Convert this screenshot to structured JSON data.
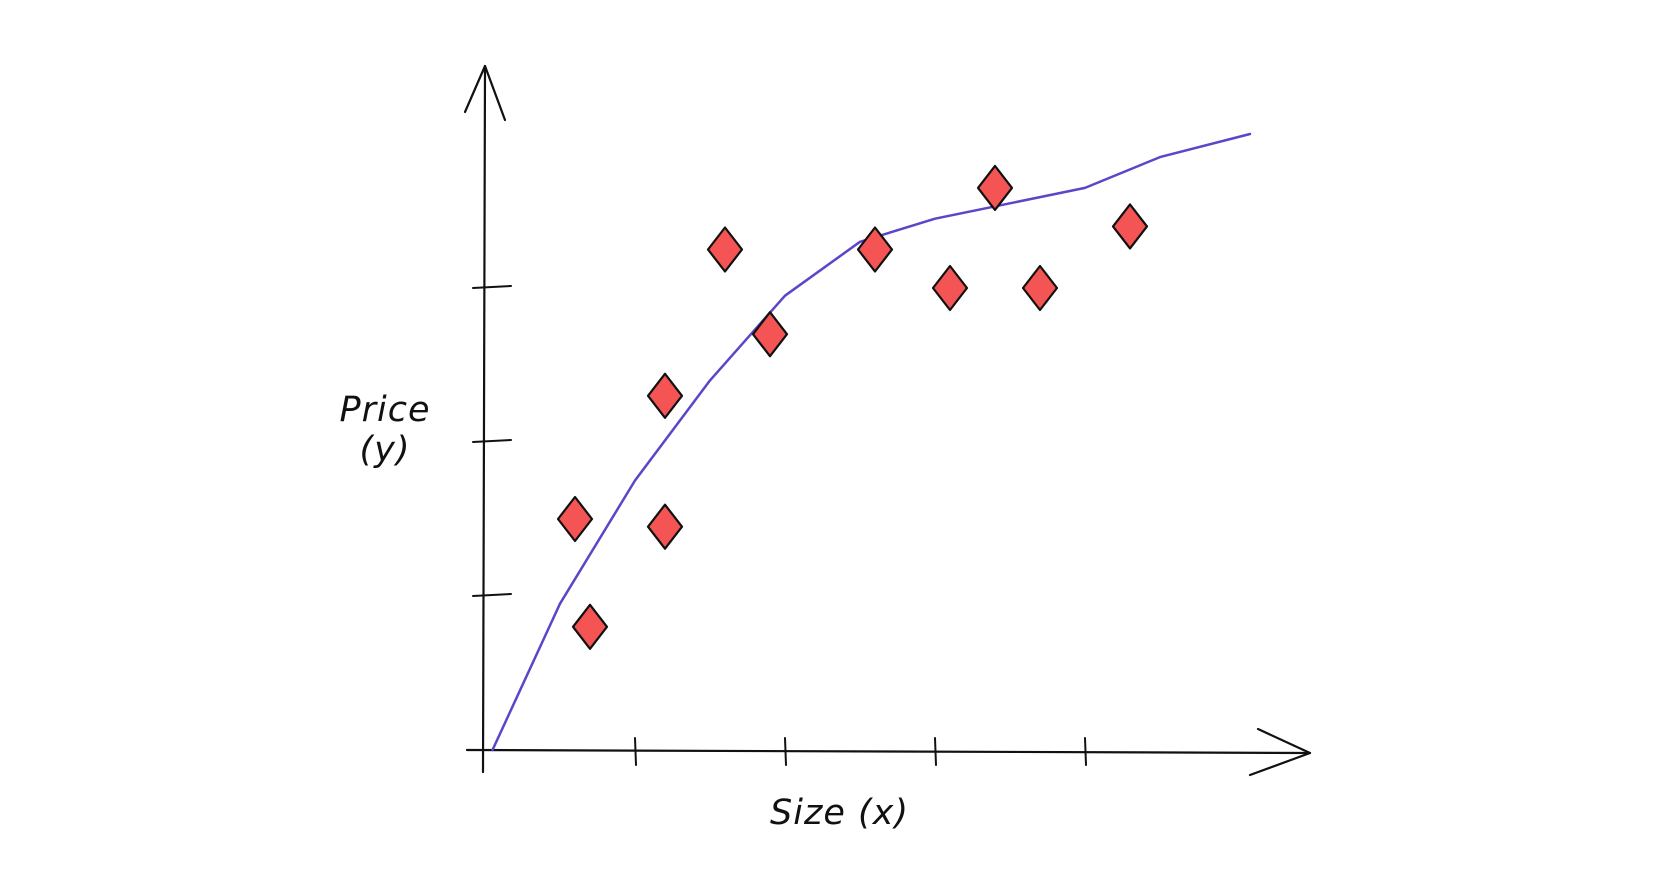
{
  "chart_data": {
    "type": "scatter",
    "title": "",
    "xlabel": "Size (x)",
    "ylabel_lines": [
      "Price",
      "(y)"
    ],
    "xlim": [
      0,
      5
    ],
    "ylim": [
      0,
      4.3
    ],
    "x_ticks": [
      1,
      2,
      3,
      4
    ],
    "y_ticks": [
      1,
      2,
      3
    ],
    "grid": false,
    "legend": "none",
    "series": [
      {
        "values": [
          {
            "x": 0.6,
            "y": 1.5
          },
          {
            "x": 0.7,
            "y": 0.8
          },
          {
            "x": 1.2,
            "y": 2.3
          },
          {
            "x": 1.2,
            "y": 1.45
          },
          {
            "x": 1.6,
            "y": 3.25
          },
          {
            "x": 1.9,
            "y": 2.7
          },
          {
            "x": 2.6,
            "y": 3.25
          },
          {
            "x": 3.1,
            "y": 3.0
          },
          {
            "x": 3.4,
            "y": 3.65
          },
          {
            "x": 3.7,
            "y": 3.0
          },
          {
            "x": 4.3,
            "y": 3.4
          }
        ]
      },
      {
        "values": [
          {
            "x": 0.05,
            "y": 0.0
          },
          {
            "x": 0.5,
            "y": 0.95
          },
          {
            "x": 1.0,
            "y": 1.75
          },
          {
            "x": 1.5,
            "y": 2.4
          },
          {
            "x": 2.0,
            "y": 2.95
          },
          {
            "x": 2.5,
            "y": 3.3
          },
          {
            "x": 3.0,
            "y": 3.45
          },
          {
            "x": 3.5,
            "y": 3.55
          },
          {
            "x": 4.0,
            "y": 3.65
          },
          {
            "x": 4.5,
            "y": 3.85
          },
          {
            "x": 5.1,
            "y": 4.0
          }
        ]
      }
    ],
    "colors": {
      "points": "#f45454",
      "point_outline": "#111111",
      "curve": "#5a46c8",
      "axis": "#111111"
    }
  }
}
